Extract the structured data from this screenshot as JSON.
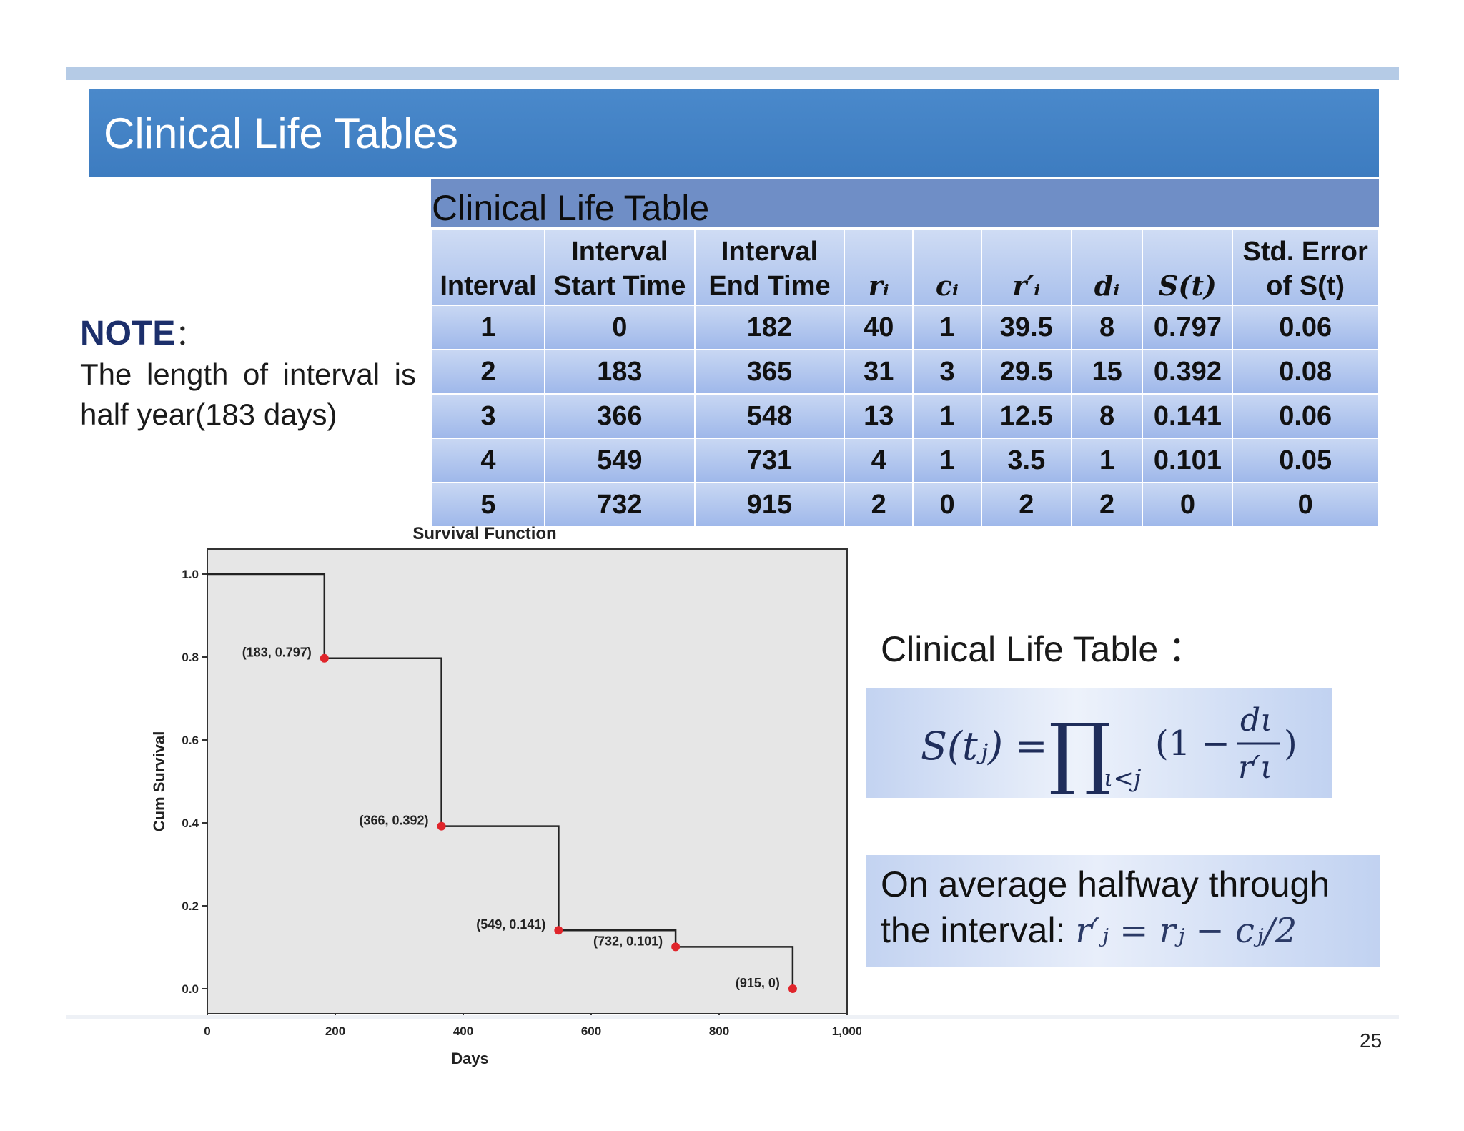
{
  "slide": {
    "title": "Clinical Life Tables",
    "page_number": "25"
  },
  "note": {
    "heading": "NOTE",
    "colon": "：",
    "text": "The length of interval is half year(183 days)"
  },
  "life_table": {
    "caption": "Clinical Life Table",
    "headers": [
      {
        "line1": "",
        "line2": "Interval"
      },
      {
        "line1": "Interval",
        "line2": "Start Time"
      },
      {
        "line1": "Interval",
        "line2": "End Time"
      },
      {
        "line1": "",
        "line2": "rᵢ"
      },
      {
        "line1": "",
        "line2": "cᵢ"
      },
      {
        "line1": "",
        "line2": "r′ᵢ"
      },
      {
        "line1": "",
        "line2": "dᵢ"
      },
      {
        "line1": "",
        "line2": "S(t)"
      },
      {
        "line1": "Std. Error",
        "line2": "of S(t)"
      }
    ],
    "rows": [
      [
        "1",
        "0",
        "182",
        "40",
        "1",
        "39.5",
        "8",
        "0.797",
        "0.06"
      ],
      [
        "2",
        "183",
        "365",
        "31",
        "3",
        "29.5",
        "15",
        "0.392",
        "0.08"
      ],
      [
        "3",
        "366",
        "548",
        "13",
        "1",
        "12.5",
        "8",
        "0.141",
        "0.06"
      ],
      [
        "4",
        "549",
        "731",
        "4",
        "1",
        "3.5",
        "1",
        "0.101",
        "0.05"
      ],
      [
        "5",
        "732",
        "915",
        "2",
        "0",
        "2",
        "2",
        "0",
        "0"
      ]
    ]
  },
  "formula": {
    "title": "Clinical Life Table",
    "colon": "：",
    "lhs": "S(tⱼ) =",
    "prod": "∏",
    "sub": "ι<j",
    "open": "(1 −",
    "num": "dι",
    "den": "r′ι",
    "close": ")"
  },
  "average": {
    "line1": "On average halfway through",
    "line2_text": "the interval: ",
    "line2_math": "r′ⱼ = rⱼ − cⱼ/2"
  },
  "chart_data": {
    "type": "line",
    "step": true,
    "title": "Survival Function",
    "xlabel": "Days",
    "ylabel": "Cum Survival",
    "xlim": [
      0,
      1000
    ],
    "ylim": [
      0,
      1.0
    ],
    "xticks": [
      0,
      200,
      400,
      600,
      800,
      1000
    ],
    "xtick_labels": [
      "0",
      "200",
      "400",
      "600",
      "800",
      "1,000"
    ],
    "yticks": [
      0,
      0.2,
      0.4,
      0.6,
      0.8,
      1.0
    ],
    "ytick_labels": [
      "0.0",
      "0.2",
      "0.4",
      "0.6",
      "0.8",
      "1.0"
    ],
    "line": [
      {
        "x": 0,
        "y": 1.0
      },
      {
        "x": 183,
        "y": 1.0
      },
      {
        "x": 183,
        "y": 0.797
      },
      {
        "x": 366,
        "y": 0.797
      },
      {
        "x": 366,
        "y": 0.392
      },
      {
        "x": 549,
        "y": 0.392
      },
      {
        "x": 549,
        "y": 0.141
      },
      {
        "x": 732,
        "y": 0.141
      },
      {
        "x": 732,
        "y": 0.101
      },
      {
        "x": 915,
        "y": 0.101
      },
      {
        "x": 915,
        "y": 0.0
      }
    ],
    "points": [
      {
        "x": 183,
        "y": 0.797,
        "label": "(183, 0.797)"
      },
      {
        "x": 366,
        "y": 0.392,
        "label": "(366, 0.392)"
      },
      {
        "x": 549,
        "y": 0.141,
        "label": "(549, 0.141)"
      },
      {
        "x": 732,
        "y": 0.101,
        "label": "(732, 0.101)"
      },
      {
        "x": 915,
        "y": 0.0,
        "label": "(915, 0)"
      }
    ],
    "background": "#e6e6e6",
    "point_color": "#e0252b"
  }
}
